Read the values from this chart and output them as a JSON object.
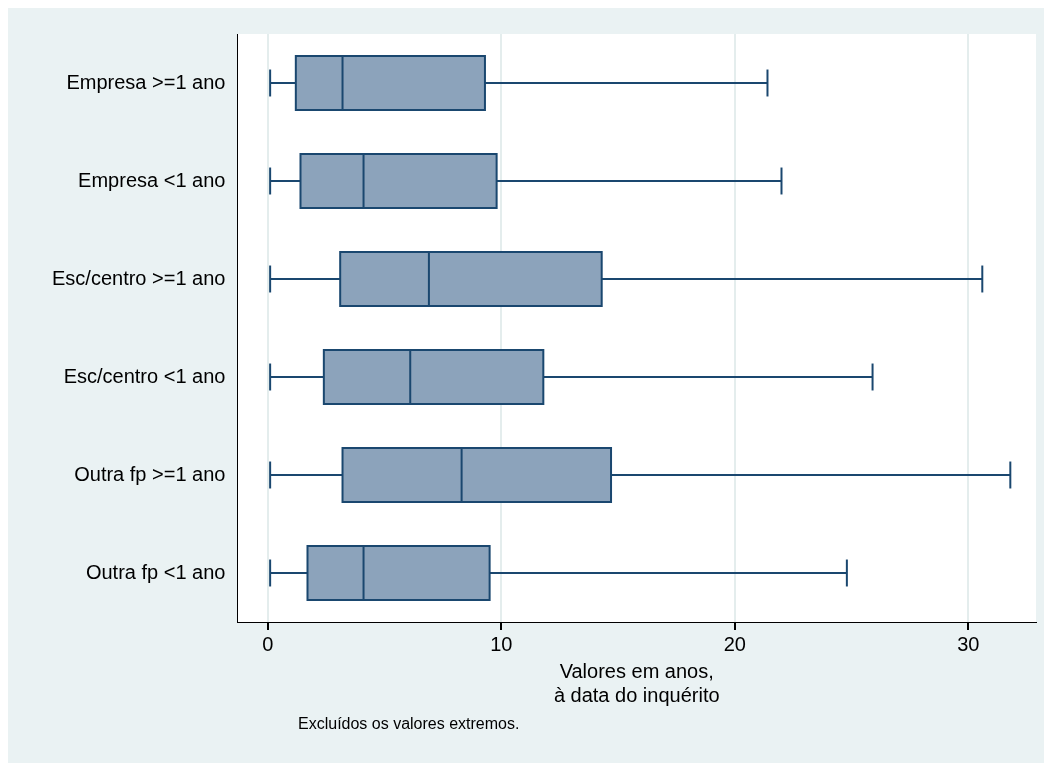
{
  "chart_data": {
    "type": "box",
    "orientation": "horizontal",
    "xlabel": "Valores em anos,\nà data do inquérito",
    "categories": [
      "Empresa >=1 ano",
      "Empresa <1 ano",
      "Esc/centro >=1 ano",
      "Esc/centro <1 ano",
      "Outra fp >=1 ano",
      "Outra fp <1 ano"
    ],
    "series": [
      {
        "color": "#8ca3bb",
        "boxes": [
          {
            "low": 0.1,
            "q1": 1.2,
            "median": 3.2,
            "q3": 9.3,
            "high": 21.4
          },
          {
            "low": 0.1,
            "q1": 1.4,
            "median": 4.1,
            "q3": 9.8,
            "high": 22.0
          },
          {
            "low": 0.1,
            "q1": 3.1,
            "median": 6.9,
            "q3": 14.3,
            "high": 30.6
          },
          {
            "low": 0.1,
            "q1": 2.4,
            "median": 6.1,
            "q3": 11.8,
            "high": 25.9
          },
          {
            "low": 0.1,
            "q1": 3.2,
            "median": 8.3,
            "q3": 14.7,
            "high": 31.8
          },
          {
            "low": 0.1,
            "q1": 1.7,
            "median": 4.1,
            "q3": 9.5,
            "high": 24.8
          }
        ]
      }
    ],
    "xlim": [
      -1.3,
      32.9
    ],
    "xticks": [
      0,
      10,
      20,
      30
    ],
    "grid": "x",
    "legend": false,
    "annotations": [
      "Excluídos os valores extremos."
    ]
  }
}
